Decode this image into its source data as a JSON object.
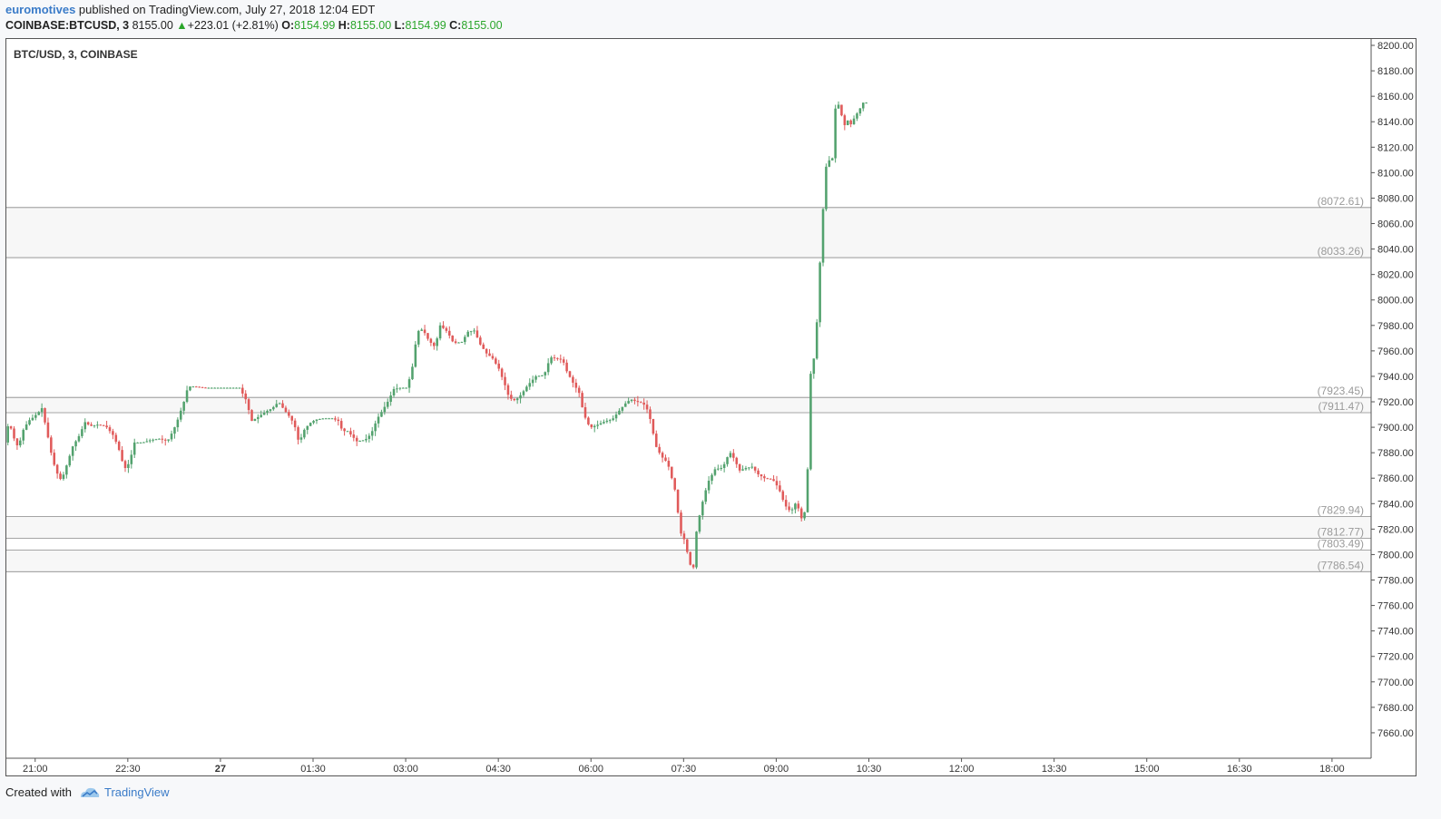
{
  "header": {
    "user": "euromotives",
    "published_text": " published on TradingView.com, July 27, 2018 12:04 EDT",
    "symbol": "COINBASE:BTCUSD, 3",
    "last": "8155.00",
    "arrow": "▲",
    "change": "+223.01 (+2.81%)",
    "o_label": "O:",
    "o_value": "8154.99",
    "h_label": "H:",
    "h_value": "8155.00",
    "l_label": "L:",
    "l_value": "8154.99",
    "c_label": "C:",
    "c_value": "8155.00"
  },
  "footer": {
    "created": "Created with",
    "brand": "TradingView",
    "logo_icon": "tradingview-cloud-icon"
  },
  "colors": {
    "up": "#53a26e",
    "down": "#e05a5a",
    "level_line": "#888888",
    "zone_fill": "#f7f7f7",
    "level_text": "#9a9a9a",
    "accent": "#3a7bc8"
  },
  "chart_data": {
    "type": "candlestick",
    "title": "BTC/USD, 3, COINBASE",
    "y_range": [
      7640,
      8205
    ],
    "y_ticks": [
      8200,
      8180,
      8160,
      8140,
      8120,
      8100,
      8080,
      8060,
      8040,
      8020,
      8000,
      7980,
      7960,
      7940,
      7920,
      7900,
      7880,
      7860,
      7840,
      7820,
      7800,
      7780,
      7760,
      7740,
      7720,
      7700,
      7680,
      7660
    ],
    "x_ticks": [
      {
        "label": "21:00",
        "t": 0
      },
      {
        "label": "22:30",
        "t": 90
      },
      {
        "label": "27",
        "t": 180,
        "bold": true
      },
      {
        "label": "01:30",
        "t": 270
      },
      {
        "label": "03:00",
        "t": 360
      },
      {
        "label": "04:30",
        "t": 450
      },
      {
        "label": "06:00",
        "t": 540
      },
      {
        "label": "07:30",
        "t": 630
      },
      {
        "label": "09:00",
        "t": 720
      },
      {
        "label": "10:30",
        "t": 810
      },
      {
        "label": "12:00",
        "t": 900
      },
      {
        "label": "13:30",
        "t": 990
      },
      {
        "label": "15:00",
        "t": 1080
      },
      {
        "label": "16:30",
        "t": 1170
      },
      {
        "label": "18:00",
        "t": 1260
      }
    ],
    "x_range_minutes": [
      -28,
      1298
    ],
    "levels": [
      8072.61,
      8033.26,
      7923.45,
      7911.47,
      7829.94,
      7812.77,
      7803.49,
      7786.54
    ],
    "level_labels": [
      "(8072.61)",
      "(8033.26)",
      "(7923.45)",
      "(7911.47)",
      "(7829.94)",
      "(7812.77)",
      "(7803.49)",
      "(7786.54)"
    ],
    "zones": [
      [
        8033.26,
        8072.61
      ],
      [
        7911.47,
        7923.45
      ],
      [
        7812.77,
        7829.94
      ],
      [
        7786.54,
        7803.49
      ]
    ],
    "candle_interval_minutes": 3,
    "path_points": [
      [
        -28,
        7888
      ],
      [
        -24,
        7905
      ],
      [
        -20,
        7893
      ],
      [
        -15,
        7884
      ],
      [
        -10,
        7898
      ],
      [
        -5,
        7905
      ],
      [
        0,
        7908
      ],
      [
        5,
        7912
      ],
      [
        8,
        7915
      ],
      [
        12,
        7900
      ],
      [
        18,
        7876
      ],
      [
        22,
        7865
      ],
      [
        27,
        7858
      ],
      [
        32,
        7870
      ],
      [
        38,
        7885
      ],
      [
        44,
        7893
      ],
      [
        50,
        7904
      ],
      [
        55,
        7901
      ],
      [
        62,
        7902
      ],
      [
        70,
        7901
      ],
      [
        78,
        7893
      ],
      [
        84,
        7880
      ],
      [
        88,
        7867
      ],
      [
        93,
        7872
      ],
      [
        98,
        7888
      ],
      [
        106,
        7888
      ],
      [
        114,
        7890
      ],
      [
        122,
        7891
      ],
      [
        130,
        7889
      ],
      [
        136,
        7898
      ],
      [
        140,
        7906
      ],
      [
        146,
        7920
      ],
      [
        150,
        7932
      ],
      [
        156,
        7932
      ],
      [
        166,
        7931
      ],
      [
        178,
        7931
      ],
      [
        190,
        7931
      ],
      [
        200,
        7931
      ],
      [
        206,
        7922
      ],
      [
        212,
        7905
      ],
      [
        218,
        7908
      ],
      [
        225,
        7912
      ],
      [
        232,
        7915
      ],
      [
        238,
        7920
      ],
      [
        244,
        7913
      ],
      [
        250,
        7907
      ],
      [
        254,
        7900
      ],
      [
        258,
        7887
      ],
      [
        262,
        7897
      ],
      [
        268,
        7903
      ],
      [
        274,
        7906
      ],
      [
        282,
        7907
      ],
      [
        290,
        7907
      ],
      [
        296,
        7905
      ],
      [
        300,
        7897
      ],
      [
        305,
        7897
      ],
      [
        314,
        7889
      ],
      [
        322,
        7890
      ],
      [
        328,
        7895
      ],
      [
        334,
        7907
      ],
      [
        338,
        7912
      ],
      [
        344,
        7920
      ],
      [
        350,
        7930
      ],
      [
        356,
        7931
      ],
      [
        362,
        7931
      ],
      [
        366,
        7940
      ],
      [
        370,
        7955
      ],
      [
        372,
        7975
      ],
      [
        378,
        7977
      ],
      [
        384,
        7968
      ],
      [
        390,
        7963
      ],
      [
        395,
        7980
      ],
      [
        402,
        7975
      ],
      [
        408,
        7966
      ],
      [
        416,
        7967
      ],
      [
        422,
        7975
      ],
      [
        428,
        7976
      ],
      [
        434,
        7965
      ],
      [
        440,
        7958
      ],
      [
        446,
        7954
      ],
      [
        452,
        7946
      ],
      [
        458,
        7933
      ],
      [
        462,
        7923
      ],
      [
        468,
        7921
      ],
      [
        474,
        7926
      ],
      [
        480,
        7933
      ],
      [
        488,
        7940
      ],
      [
        496,
        7941
      ],
      [
        502,
        7955
      ],
      [
        508,
        7954
      ],
      [
        514,
        7953
      ],
      [
        518,
        7944
      ],
      [
        524,
        7935
      ],
      [
        530,
        7927
      ],
      [
        534,
        7912
      ],
      [
        538,
        7903
      ],
      [
        542,
        7900
      ],
      [
        548,
        7902
      ],
      [
        556,
        7905
      ],
      [
        562,
        7906
      ],
      [
        568,
        7912
      ],
      [
        574,
        7918
      ],
      [
        580,
        7922
      ],
      [
        586,
        7920
      ],
      [
        592,
        7919
      ],
      [
        596,
        7914
      ],
      [
        600,
        7904
      ],
      [
        604,
        7886
      ],
      [
        610,
        7877
      ],
      [
        616,
        7872
      ],
      [
        620,
        7860
      ],
      [
        624,
        7848
      ],
      [
        628,
        7818
      ],
      [
        632,
        7812
      ],
      [
        638,
        7792
      ],
      [
        641,
        7790
      ],
      [
        644,
        7818
      ],
      [
        648,
        7835
      ],
      [
        652,
        7848
      ],
      [
        656,
        7858
      ],
      [
        662,
        7867
      ],
      [
        668,
        7868
      ],
      [
        672,
        7872
      ],
      [
        676,
        7881
      ],
      [
        680,
        7876
      ],
      [
        686,
        7866
      ],
      [
        692,
        7868
      ],
      [
        698,
        7869
      ],
      [
        704,
        7863
      ],
      [
        710,
        7860
      ],
      [
        718,
        7859
      ],
      [
        724,
        7852
      ],
      [
        728,
        7843
      ],
      [
        732,
        7836
      ],
      [
        736,
        7834
      ],
      [
        740,
        7840
      ],
      [
        744,
        7835
      ],
      [
        748,
        7822
      ],
      [
        752,
        7867
      ],
      [
        754,
        7922
      ],
      [
        756,
        7962
      ],
      [
        759,
        7950
      ],
      [
        763,
        8015
      ],
      [
        766,
        8058
      ],
      [
        769,
        8098
      ],
      [
        772,
        8118
      ],
      [
        775,
        8093
      ],
      [
        778,
        8148
      ],
      [
        781,
        8155
      ],
      [
        784,
        8150
      ],
      [
        787,
        8135
      ],
      [
        790,
        8142
      ],
      [
        794,
        8138
      ],
      [
        798,
        8144
      ],
      [
        802,
        8149
      ],
      [
        806,
        8155
      ]
    ]
  }
}
